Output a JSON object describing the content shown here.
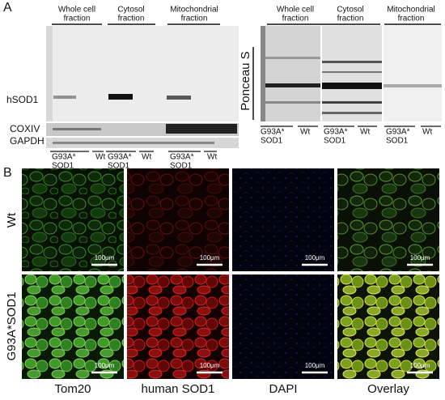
{
  "panel_a": {
    "label": "A",
    "left_blot": {
      "fractions": [
        [
          "Whole cell",
          "fraction"
        ],
        [
          "Cytosol",
          "fraction"
        ],
        [
          "Mitochondrial",
          "fraction"
        ]
      ],
      "rows": [
        "hSOD1",
        "COXIV",
        "GAPDH"
      ],
      "lanes": [
        [
          "G93A*",
          "SOD1"
        ],
        [
          "Wt"
        ],
        [
          "G93A*",
          "SOD1"
        ],
        [
          "Wt"
        ],
        [
          "G93A*",
          "SOD1"
        ],
        [
          "Wt"
        ]
      ]
    },
    "right_blot": {
      "fractions": [
        [
          "Whole cell",
          "fraction"
        ],
        [
          "Cytosol",
          "fraction"
        ],
        [
          "Mitochondrial",
          "fraction"
        ]
      ],
      "stain": "Ponceau S",
      "lanes": [
        [
          "G93A*",
          "SOD1"
        ],
        [
          "Wt"
        ],
        [
          "G93A*",
          "SOD1"
        ],
        [
          "Wt"
        ],
        [
          "G93A*",
          "SOD1"
        ],
        [
          "Wt"
        ]
      ]
    }
  },
  "panel_b": {
    "label": "B",
    "rows": [
      "Wt",
      "G93A*SOD1"
    ],
    "columns": [
      "Tom20",
      "human SOD1",
      "DAPI",
      "Overlay"
    ],
    "scale_bars": [
      "100μm",
      "100μm",
      "100μm",
      "100μm",
      "100μm",
      "100μm",
      "100μm",
      "100μm"
    ]
  }
}
